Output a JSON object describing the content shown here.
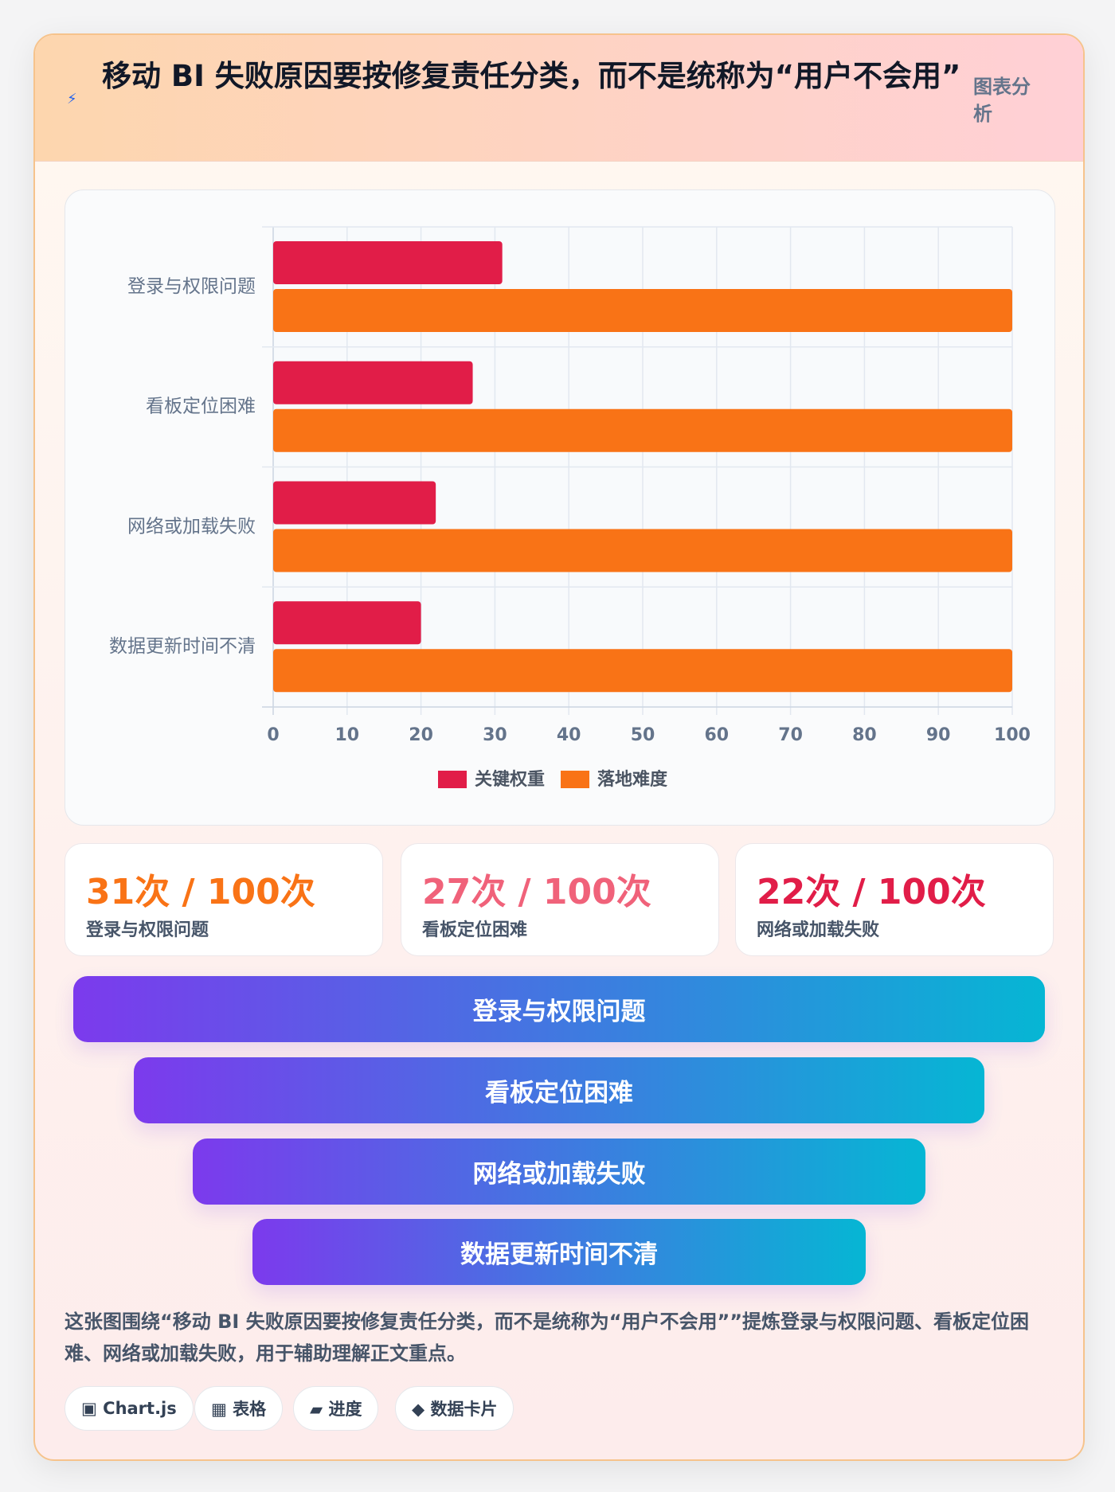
{
  "header": {
    "icon": "⚡",
    "title": "移动 BI 失败原因要按修复责任分类，而不是统称为“用户不会用”",
    "badge": "图表分析"
  },
  "chart_data": {
    "type": "bar",
    "orientation": "horizontal",
    "categories": [
      "登录与权限问题",
      "看板定位困难",
      "网络或加载失败",
      "数据更新时间不清"
    ],
    "series": [
      {
        "name": "关键权重",
        "color": "#e11d48",
        "values": [
          31,
          27,
          22,
          20
        ]
      },
      {
        "name": "落地难度",
        "color": "#f97316",
        "values": [
          100,
          100,
          100,
          100
        ]
      }
    ],
    "xlim": [
      0,
      100
    ],
    "xticks": [
      0,
      10,
      20,
      30,
      40,
      50,
      60,
      70,
      80,
      90,
      100
    ],
    "grid": true,
    "legend": "bottom"
  },
  "stats": [
    {
      "value": "31次 / 100次",
      "label": "登录与权限问题",
      "color": "#f97316"
    },
    {
      "value": "27次 / 100次",
      "label": "看板定位困难",
      "color": "#f0627a"
    },
    {
      "value": "22次 / 100次",
      "label": "网络或加载失败",
      "color": "#e11d48"
    }
  ],
  "funnel": [
    "登录与权限问题",
    "看板定位困难",
    "网络或加载失败",
    "数据更新时间不清"
  ],
  "description": "这张图围绕“移动 BI 失败原因要按修复责任分类，而不是统称为“用户不会用””提炼登录与权限问题、看板定位困难、网络或加载失败，用于辅助理解正文重点。",
  "tags": [
    "▣ Chart.js",
    "▦ 表格",
    "▰ 进度",
    "◆ 数据卡片"
  ]
}
